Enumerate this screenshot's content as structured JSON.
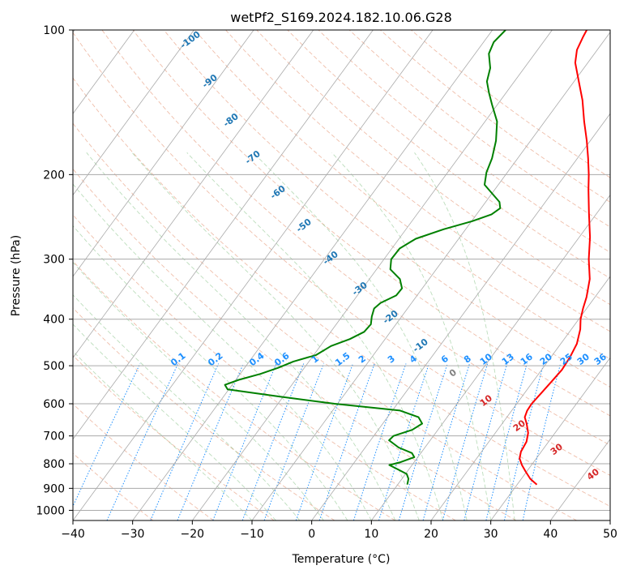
{
  "chart_data": {
    "type": "line",
    "title": "wetPf2_S169.2024.182.10.06.G28",
    "xlabel": "Temperature (°C)",
    "ylabel": "Pressure (hPa)",
    "xlim": [
      -40,
      50
    ],
    "ylim": [
      1050,
      100
    ],
    "y_scale": "log",
    "x_ticks": [
      -40,
      -30,
      -20,
      -10,
      0,
      10,
      20,
      30,
      40,
      50
    ],
    "x_tick_labels": [
      "−40",
      "−30",
      "−20",
      "−10",
      "0",
      "10",
      "20",
      "30",
      "40",
      "50"
    ],
    "y_ticks": [
      100,
      200,
      300,
      400,
      500,
      600,
      700,
      800,
      900,
      1000
    ],
    "y_tick_labels": [
      "100",
      "200",
      "300",
      "400",
      "500",
      "600",
      "700",
      "800",
      "900",
      "1000"
    ],
    "grid": true,
    "series": [
      {
        "role": "temperature",
        "color": "#ff0000",
        "points": [
          [
            884,
            33.3
          ],
          [
            860,
            31.5
          ],
          [
            830,
            29.8
          ],
          [
            805,
            28.4
          ],
          [
            780,
            27.2
          ],
          [
            755,
            26.6
          ],
          [
            720,
            26.3
          ],
          [
            690,
            25.5
          ],
          [
            660,
            24.1
          ],
          [
            640,
            23.0
          ],
          [
            620,
            22.6
          ],
          [
            600,
            22.5
          ],
          [
            570,
            22.8
          ],
          [
            540,
            23.1
          ],
          [
            510,
            23.4
          ],
          [
            480,
            23.2
          ],
          [
            450,
            22.7
          ],
          [
            420,
            21.5
          ],
          [
            400,
            20.3
          ],
          [
            380,
            19.4
          ],
          [
            360,
            18.6
          ],
          [
            330,
            16.9
          ],
          [
            300,
            14.3
          ],
          [
            270,
            11.8
          ],
          [
            240,
            8.6
          ],
          [
            215,
            5.7
          ],
          [
            200,
            3.9
          ],
          [
            185,
            1.8
          ],
          [
            170,
            -0.6
          ],
          [
            155,
            -3.4
          ],
          [
            140,
            -6.3
          ],
          [
            128,
            -9.2
          ],
          [
            117,
            -12.1
          ],
          [
            110,
            -13.4
          ],
          [
            103,
            -14.0
          ],
          [
            100,
            -14.2
          ]
        ]
      },
      {
        "role": "dewpoint",
        "color": "#008000",
        "points": [
          [
            884,
            11.6
          ],
          [
            860,
            11.1
          ],
          [
            840,
            10.2
          ],
          [
            825,
            8.5
          ],
          [
            805,
            6.2
          ],
          [
            795,
            7.6
          ],
          [
            775,
            9.4
          ],
          [
            760,
            8.5
          ],
          [
            740,
            5.6
          ],
          [
            715,
            3.1
          ],
          [
            700,
            3.3
          ],
          [
            680,
            5.7
          ],
          [
            660,
            6.6
          ],
          [
            640,
            5.2
          ],
          [
            620,
            1.3
          ],
          [
            600,
            -10.5
          ],
          [
            580,
            -20.5
          ],
          [
            560,
            -30.2
          ],
          [
            548,
            -31.2
          ],
          [
            535,
            -29.5
          ],
          [
            520,
            -26.6
          ],
          [
            505,
            -24.4
          ],
          [
            490,
            -22.6
          ],
          [
            475,
            -19.6
          ],
          [
            455,
            -18.2
          ],
          [
            440,
            -15.9
          ],
          [
            425,
            -14.4
          ],
          [
            410,
            -14.2
          ],
          [
            395,
            -15.0
          ],
          [
            380,
            -15.6
          ],
          [
            370,
            -15.2
          ],
          [
            357,
            -13.5
          ],
          [
            345,
            -13.4
          ],
          [
            330,
            -14.9
          ],
          [
            315,
            -17.7
          ],
          [
            300,
            -18.8
          ],
          [
            285,
            -18.7
          ],
          [
            272,
            -17.2
          ],
          [
            260,
            -13.7
          ],
          [
            250,
            -9.9
          ],
          [
            242,
            -7.5
          ],
          [
            235,
            -6.8
          ],
          [
            228,
            -7.7
          ],
          [
            220,
            -9.7
          ],
          [
            210,
            -12.3
          ],
          [
            198,
            -13.5
          ],
          [
            185,
            -14.3
          ],
          [
            170,
            -15.8
          ],
          [
            155,
            -18.0
          ],
          [
            143,
            -20.9
          ],
          [
            135,
            -22.9
          ],
          [
            128,
            -24.6
          ],
          [
            120,
            -25.7
          ],
          [
            112,
            -27.7
          ],
          [
            106,
            -28.3
          ],
          [
            100,
            -27.8
          ]
        ]
      }
    ],
    "dry_adiabat_labels": [
      "-100",
      "-90",
      "-80",
      "-70",
      "-60",
      "-50",
      "-40",
      "-30",
      "-20",
      "-10",
      "0"
    ],
    "moist_adiabat_labels": [
      "10",
      "20",
      "30",
      "40"
    ],
    "mixing_ratio_labels": [
      "0.1",
      "0.2",
      "0.4",
      "0.6",
      "1",
      "1.5",
      "2",
      "3",
      "4",
      "6",
      "8",
      "10",
      "13",
      "16",
      "20",
      "25",
      "30",
      "36"
    ]
  }
}
